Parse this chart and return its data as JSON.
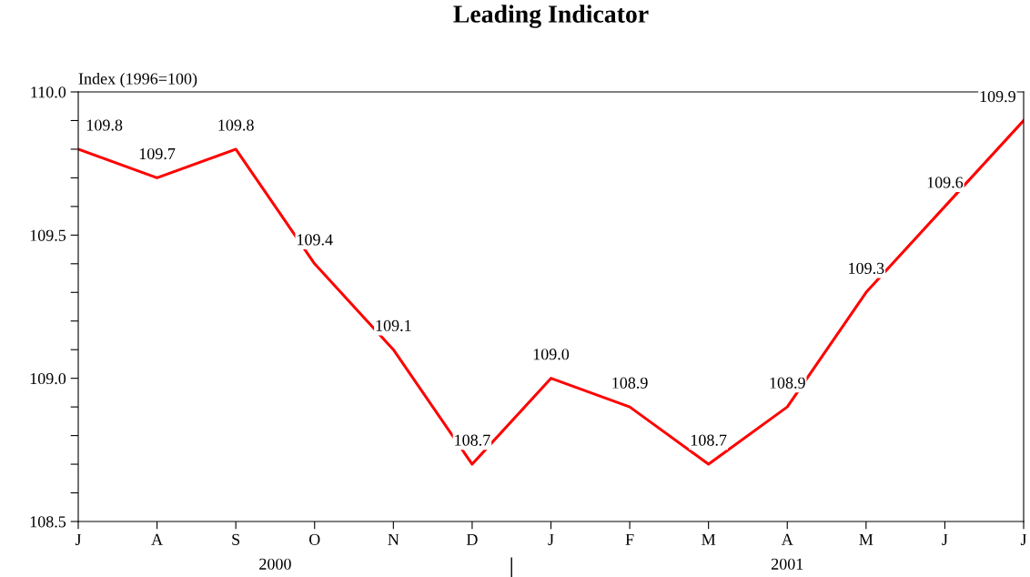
{
  "chart_data": {
    "type": "line",
    "title": "Leading Indicator",
    "ylabel": "Index (1996=100)",
    "categories": [
      "J",
      "A",
      "S",
      "O",
      "N",
      "D",
      "J",
      "F",
      "M",
      "A",
      "M",
      "J",
      "J"
    ],
    "series": [
      {
        "color": "#ff0000",
        "values": [
          109.8,
          109.7,
          109.8,
          109.4,
          109.1,
          108.7,
          109.0,
          108.9,
          108.7,
          108.9,
          109.3,
          109.6,
          109.9
        ]
      }
    ],
    "ylim": [
      108.5,
      110.0
    ],
    "yticks": [
      {
        "value": 108.5,
        "label": "108.5"
      },
      {
        "value": 108.6,
        "label": null
      },
      {
        "value": 108.7,
        "label": null
      },
      {
        "value": 108.8,
        "label": null
      },
      {
        "value": 108.9,
        "label": null
      },
      {
        "value": 109.0,
        "label": "109.0"
      },
      {
        "value": 109.1,
        "label": null
      },
      {
        "value": 109.2,
        "label": null
      },
      {
        "value": 109.3,
        "label": null
      },
      {
        "value": 109.4,
        "label": null
      },
      {
        "value": 109.5,
        "label": "109.5"
      },
      {
        "value": 109.6,
        "label": null
      },
      {
        "value": 109.7,
        "label": null
      },
      {
        "value": 109.8,
        "label": null
      },
      {
        "value": 109.9,
        "label": null
      },
      {
        "value": 110.0,
        "label": "110.0"
      }
    ],
    "value_labels": [
      "109.8",
      "109.7",
      "109.8",
      "109.4",
      "109.1",
      "108.7",
      "109.0",
      "108.9",
      "108.7",
      "108.9",
      "109.3",
      "109.6",
      "109.9"
    ],
    "grid": false,
    "legend": false,
    "marker": "none",
    "line_style": "solid",
    "annotations": [
      "2000",
      "2001"
    ]
  }
}
